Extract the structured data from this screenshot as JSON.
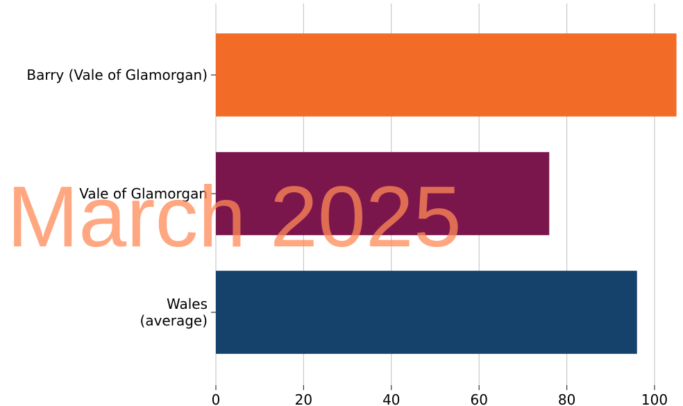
{
  "chart_data": {
    "type": "barh",
    "categories": [
      "Barry (Vale of Glamorgan)",
      "Vale of Glamorgan",
      "Wales\n(average)"
    ],
    "values": [
      105,
      76,
      96
    ],
    "colors": [
      "#f26b27",
      "#7b164d",
      "#14426b"
    ],
    "xlim": [
      0,
      105
    ],
    "xticks": [
      0,
      20,
      40,
      60,
      80,
      100
    ],
    "grid": true,
    "watermark": "March 2025"
  }
}
